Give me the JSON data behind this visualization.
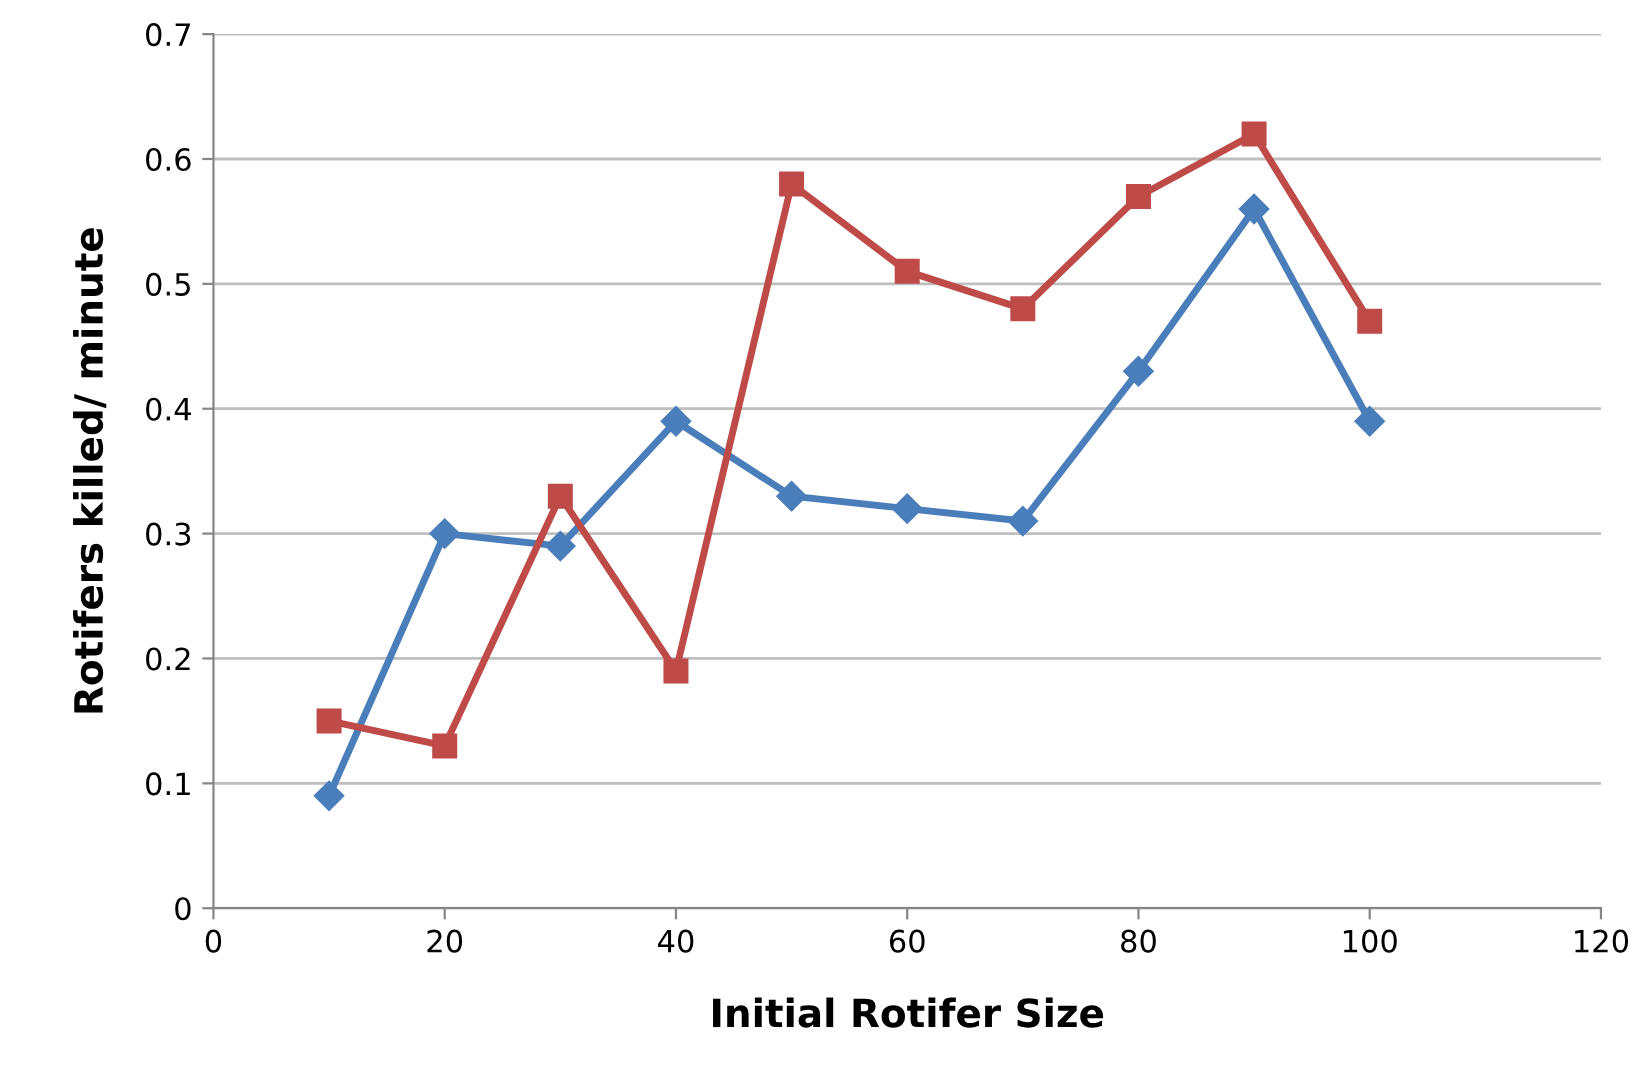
{
  "chart_data": {
    "type": "line",
    "xlabel": "Initial Rotifer Size",
    "ylabel": "Rotifers killed/ minute",
    "x": [
      10,
      20,
      30,
      40,
      50,
      60,
      70,
      80,
      90,
      100
    ],
    "series": [
      {
        "color": "#4a7ebb",
        "marker": "diamond",
        "values": [
          0.09,
          0.3,
          0.29,
          0.39,
          0.33,
          0.32,
          0.31,
          0.43,
          0.56,
          0.39
        ]
      },
      {
        "color": "#be4b48",
        "marker": "square",
        "values": [
          0.15,
          0.13,
          0.33,
          0.19,
          0.58,
          0.51,
          0.48,
          0.57,
          0.62,
          0.47
        ]
      }
    ],
    "xlim": [
      0,
      120
    ],
    "xticks": [
      0,
      20,
      40,
      60,
      80,
      100,
      120
    ],
    "ylim": [
      0,
      0.7
    ],
    "yticks": [
      0,
      0.1,
      0.2,
      0.3,
      0.4,
      0.5,
      0.6,
      0.7
    ],
    "grid": "y",
    "line_style": "solid"
  }
}
